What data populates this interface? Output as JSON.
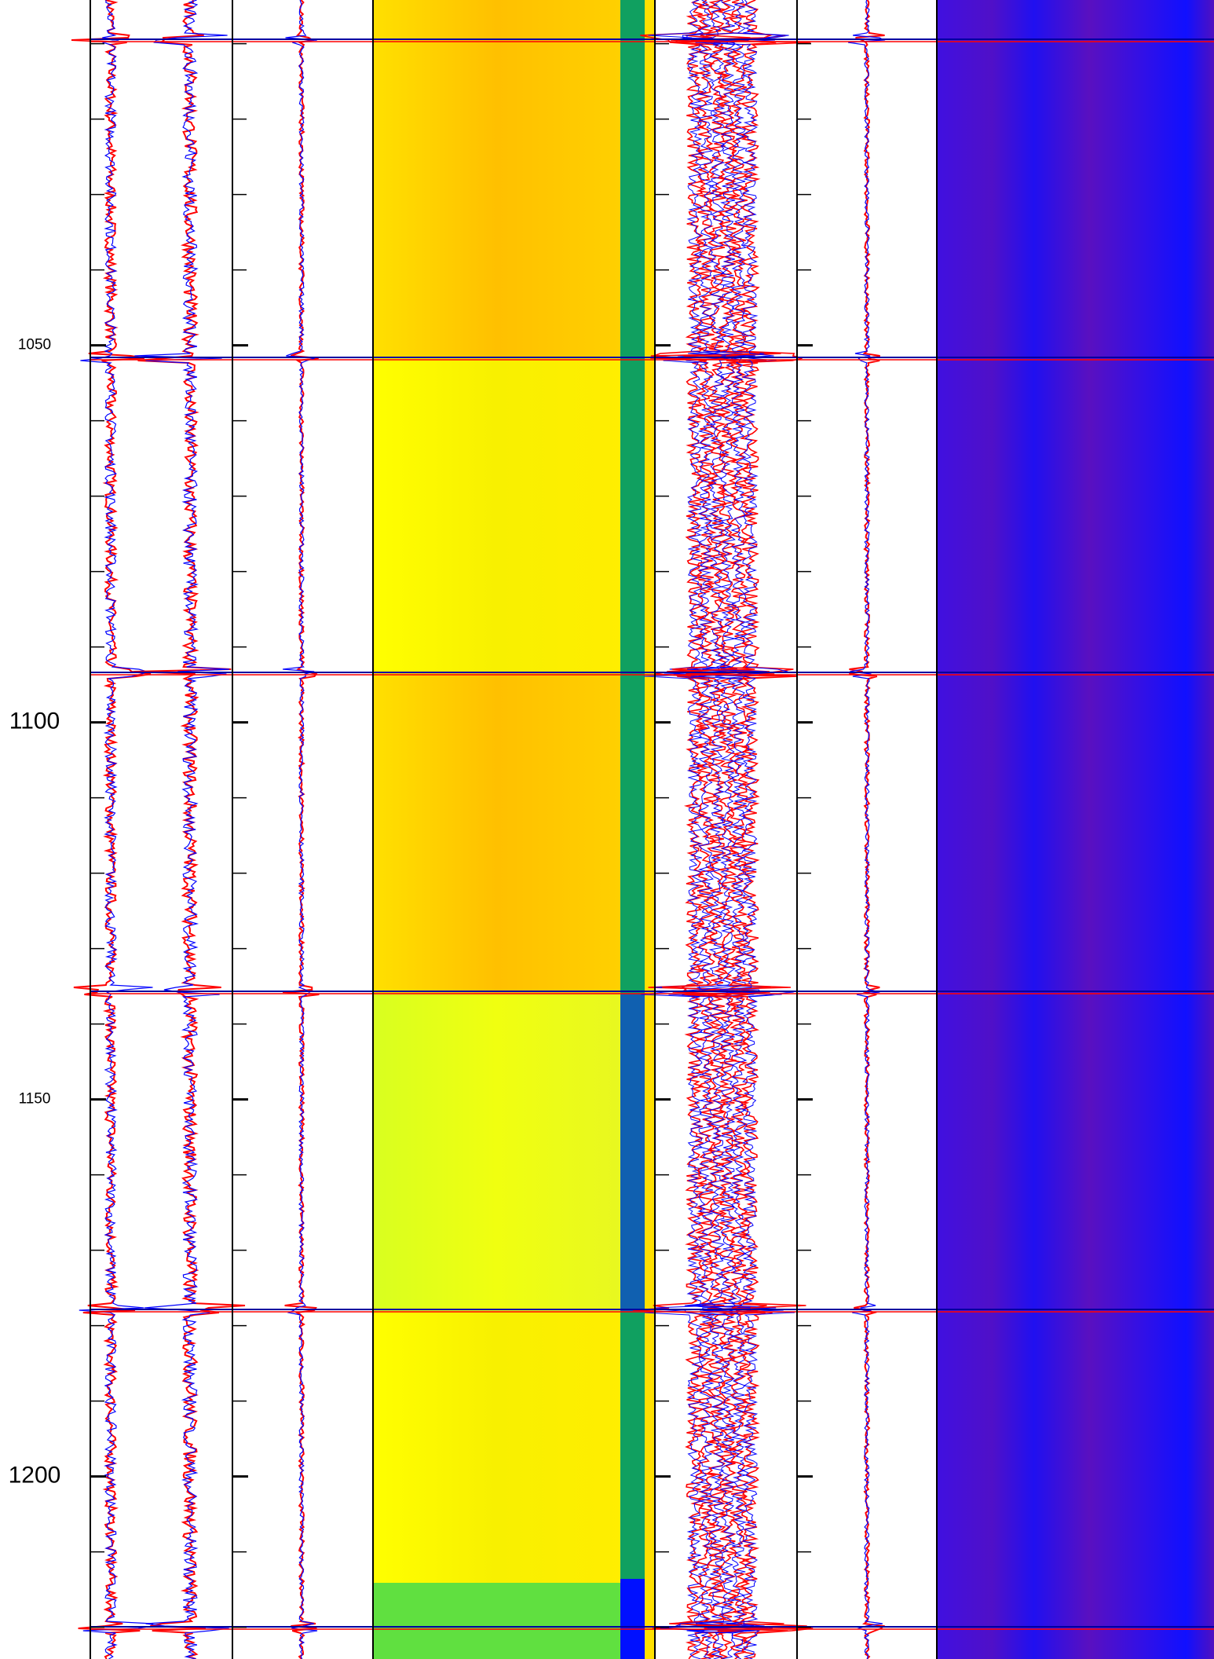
{
  "chart_data": {
    "type": "well-log",
    "ylim": [
      1004.2,
      1224.2
    ],
    "yticks": [
      1050,
      1100,
      1150,
      1200
    ],
    "yticks_minor": [
      1010,
      1020,
      1030,
      1040,
      1060,
      1070,
      1080,
      1090,
      1110,
      1120,
      1130,
      1140,
      1160,
      1170,
      1180,
      1190,
      1210,
      1220
    ]
  }
}
